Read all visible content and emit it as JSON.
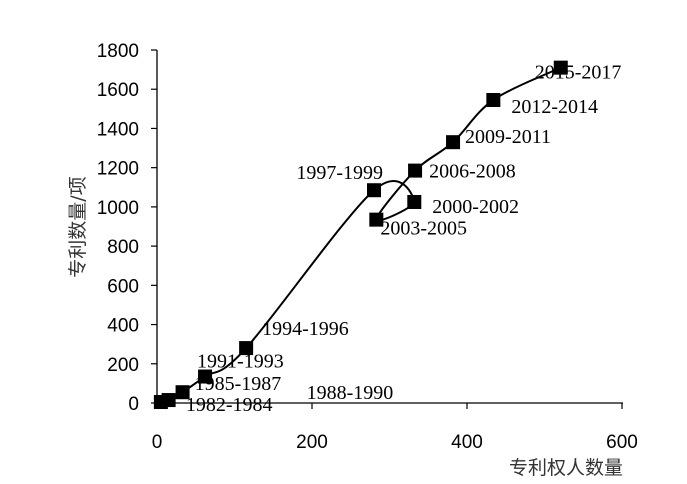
{
  "chart_data": {
    "type": "scatter",
    "title": "",
    "xlabel": "专利权人数量",
    "ylabel": "专利数量/项",
    "xlim": [
      0,
      600
    ],
    "ylim": [
      0,
      1800
    ],
    "x_ticks": [
      "0",
      "200",
      "400",
      "600"
    ],
    "y_ticks": [
      "0",
      "200",
      "400",
      "600",
      "800",
      "1000",
      "1200",
      "1400",
      "1600",
      "1800"
    ],
    "grid": false,
    "legend": "none",
    "line_color": "#000000",
    "marker": "square",
    "points": [
      {
        "label": "1982-1984",
        "x": 5,
        "y": 5
      },
      {
        "label": "1985-1987",
        "x": 15,
        "y": 15
      },
      {
        "label": "1988-1990",
        "x": 33,
        "y": 55
      },
      {
        "label": "1991-1993",
        "x": 62,
        "y": 135
      },
      {
        "label": "1994-1996",
        "x": 115,
        "y": 280
      },
      {
        "label": "1997-1999",
        "x": 280,
        "y": 1085
      },
      {
        "label": "2000-2002",
        "x": 332,
        "y": 1025
      },
      {
        "label": "2003-2005",
        "x": 283,
        "y": 935
      },
      {
        "label": "2006-2008",
        "x": 333,
        "y": 1185
      },
      {
        "label": "2009-2011",
        "x": 382,
        "y": 1330
      },
      {
        "label": "2012-2014",
        "x": 434,
        "y": 1545
      },
      {
        "label": "2015-2017",
        "x": 521,
        "y": 1710
      }
    ]
  }
}
